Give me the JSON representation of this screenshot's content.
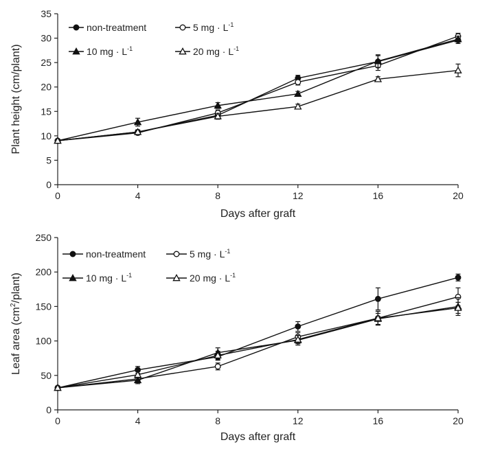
{
  "chart_data": [
    {
      "id": "plant-height",
      "type": "line",
      "title": "",
      "xlabel": "Days after graft",
      "ylabel": "Plant height (cm/plant)",
      "x": [
        0,
        4,
        8,
        12,
        16,
        20
      ],
      "xlim": [
        0,
        20
      ],
      "xticks": [
        0,
        4,
        8,
        12,
        16,
        20
      ],
      "ylim": [
        0,
        35
      ],
      "yticks": [
        0,
        5,
        10,
        15,
        20,
        25,
        30,
        35
      ],
      "grid": false,
      "legend_position": "top-left",
      "series": [
        {
          "name": "non-treatment",
          "marker": "filled-circle",
          "values": [
            9.0,
            10.8,
            14.2,
            21.8,
            25.2,
            29.6
          ],
          "errors": [
            0.3,
            0.4,
            0.6,
            0.6,
            1.2,
            0.7
          ]
        },
        {
          "name": "5 mg · L",
          "sup": "-1",
          "marker": "open-circle",
          "values": [
            9.0,
            10.6,
            14.7,
            21.0,
            24.4,
            30.4
          ],
          "errors": [
            0.3,
            0.4,
            0.6,
            0.6,
            1.0,
            0.6
          ]
        },
        {
          "name": "10 mg · L",
          "sup": "-1",
          "marker": "filled-triangle",
          "values": [
            9.0,
            12.8,
            16.2,
            18.6,
            25.3,
            29.8
          ],
          "errors": [
            0.3,
            0.8,
            0.6,
            0.5,
            1.3,
            0.6
          ]
        },
        {
          "name": "20 mg · L",
          "sup": "-1",
          "marker": "open-triangle",
          "values": [
            9.0,
            10.8,
            14.0,
            16.0,
            21.6,
            23.4
          ],
          "errors": [
            0.3,
            0.4,
            0.6,
            0.5,
            0.5,
            1.3
          ]
        }
      ]
    },
    {
      "id": "leaf-area",
      "type": "line",
      "title": "",
      "xlabel": "Days after graft",
      "ylabel": "Leaf area (cm",
      "ylabel_sup": "2",
      "ylabel_tail": "/plant)",
      "x": [
        0,
        4,
        8,
        12,
        16,
        20
      ],
      "xlim": [
        0,
        20
      ],
      "xticks": [
        0,
        4,
        8,
        12,
        16,
        20
      ],
      "ylim": [
        0,
        250
      ],
      "yticks": [
        0,
        50,
        100,
        150,
        200,
        250
      ],
      "grid": false,
      "legend_position": "top-left",
      "series": [
        {
          "name": "non-treatment",
          "marker": "filled-circle",
          "values": [
            32,
            58,
            77,
            121,
            161,
            192
          ],
          "errors": [
            2,
            5,
            5,
            7,
            16,
            5
          ]
        },
        {
          "name": "5 mg · L",
          "sup": "-1",
          "marker": "open-circle",
          "values": [
            32,
            45,
            63,
            106,
            133,
            164
          ],
          "errors": [
            2,
            4,
            5,
            6,
            10,
            13
          ]
        },
        {
          "name": "10 mg · L",
          "sup": "-1",
          "marker": "filled-triangle",
          "values": [
            32,
            43,
            83,
            101,
            132,
            150
          ],
          "errors": [
            2,
            5,
            7,
            7,
            8,
            13
          ]
        },
        {
          "name": "20 mg · L",
          "sup": "-1",
          "marker": "open-triangle",
          "values": [
            32,
            51,
            79,
            102,
            133,
            148
          ],
          "errors": [
            2,
            5,
            6,
            6,
            10,
            8
          ]
        }
      ]
    }
  ]
}
